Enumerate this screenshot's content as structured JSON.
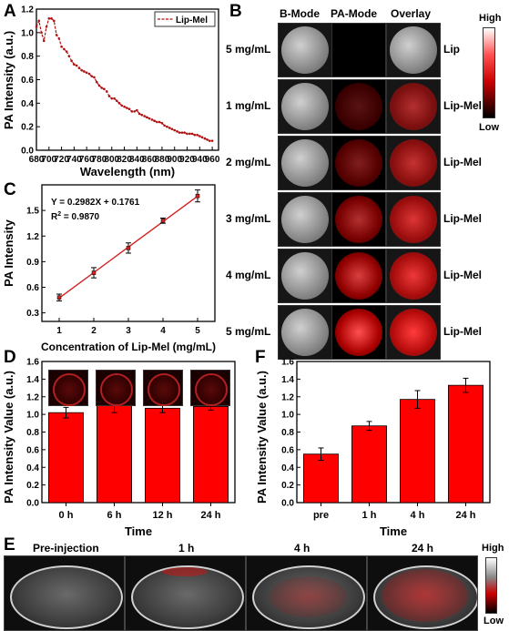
{
  "panels": {
    "a": "A",
    "b": "B",
    "c": "C",
    "d": "D",
    "e": "E",
    "f": "F"
  },
  "colors": {
    "line": "#b01010",
    "bar": "#ff0000",
    "fit": "#d42020",
    "pa_red": "#e01010"
  },
  "chart_data": [
    {
      "id": "A",
      "type": "line",
      "xlabel": "Wavelength (nm)",
      "ylabel": "PA Intensity (a.u.)",
      "xlim": [
        680,
        970
      ],
      "ylim": [
        0,
        1.2
      ],
      "xticks": [
        680,
        700,
        720,
        740,
        760,
        780,
        800,
        820,
        840,
        860,
        880,
        900,
        920,
        940,
        960
      ],
      "yticks": [
        "0.0",
        "0.2",
        "0.4",
        "0.6",
        "0.8",
        "1.0",
        "1.2"
      ],
      "legend": {
        "label": "Lip-Mel",
        "position": "top-right"
      },
      "series": [
        {
          "name": "Lip-Mel",
          "x": [
            680,
            684,
            688,
            692,
            696,
            700,
            704,
            708,
            712,
            716,
            720,
            724,
            728,
            732,
            736,
            740,
            744,
            748,
            752,
            756,
            760,
            764,
            768,
            772,
            776,
            780,
            784,
            788,
            792,
            796,
            800,
            804,
            808,
            812,
            816,
            820,
            824,
            828,
            832,
            836,
            840,
            844,
            848,
            852,
            856,
            860,
            864,
            868,
            872,
            876,
            880,
            884,
            888,
            892,
            896,
            900,
            904,
            908,
            912,
            916,
            920,
            924,
            928,
            932,
            936,
            940,
            944,
            948,
            952,
            956,
            960
          ],
          "y": [
            1.05,
            1.1,
            1.0,
            0.93,
            1.05,
            1.12,
            1.12,
            1.1,
            0.98,
            0.95,
            0.88,
            0.86,
            0.84,
            0.8,
            0.76,
            0.73,
            0.72,
            0.7,
            0.68,
            0.67,
            0.66,
            0.65,
            0.63,
            0.62,
            0.58,
            0.55,
            0.53,
            0.52,
            0.5,
            0.46,
            0.44,
            0.44,
            0.42,
            0.4,
            0.38,
            0.37,
            0.36,
            0.35,
            0.33,
            0.33,
            0.34,
            0.31,
            0.3,
            0.29,
            0.28,
            0.27,
            0.26,
            0.25,
            0.24,
            0.24,
            0.23,
            0.21,
            0.2,
            0.19,
            0.18,
            0.17,
            0.16,
            0.15,
            0.15,
            0.15,
            0.14,
            0.14,
            0.14,
            0.13,
            0.13,
            0.12,
            0.11,
            0.1,
            0.09,
            0.08,
            0.08
          ]
        }
      ]
    },
    {
      "id": "C",
      "type": "scatter",
      "xlabel": "Concentration of Lip-Mel (mg/mL)",
      "ylabel": "PA Intensity",
      "xlim": [
        0.5,
        5.5
      ],
      "ylim": [
        0.2,
        1.8
      ],
      "xticks": [
        "1",
        "2",
        "3",
        "4",
        "5"
      ],
      "yticks": [
        "0.3",
        "0.6",
        "0.9",
        "1.2",
        "1.5"
      ],
      "equation": "Y = 0.2982X + 0.1761",
      "r2_prefix": "R",
      "r2_sup": "2",
      "r2_value": " = 0.9870",
      "fit": {
        "slope": 0.2982,
        "intercept": 0.1761
      },
      "series": [
        {
          "x": [
            1,
            2,
            3,
            4,
            5
          ],
          "y": [
            0.48,
            0.77,
            1.06,
            1.38,
            1.67
          ],
          "err": [
            0.04,
            0.06,
            0.06,
            0.03,
            0.07
          ]
        }
      ]
    },
    {
      "id": "D",
      "type": "bar",
      "xlabel": "Time",
      "ylabel": "PA Intensity Value (a.u.)",
      "ylim": [
        0,
        1.6
      ],
      "yticks": [
        "0.0",
        "0.2",
        "0.4",
        "0.6",
        "0.8",
        "1.0",
        "1.2",
        "1.4",
        "1.6"
      ],
      "categories": [
        "0 h",
        "6 h",
        "12 h",
        "24 h"
      ],
      "values": [
        1.02,
        1.12,
        1.07,
        1.09
      ],
      "err": [
        0.06,
        0.1,
        0.05,
        0.04
      ]
    },
    {
      "id": "F",
      "type": "bar",
      "xlabel": "Time",
      "ylabel": "PA Intensity Value (a.u.)",
      "ylim": [
        0,
        1.6
      ],
      "yticks": [
        "0.0",
        "0.2",
        "0.4",
        "0.6",
        "0.8",
        "1.0",
        "1.2",
        "1.4",
        "1.6"
      ],
      "categories": [
        "pre",
        "1 h",
        "4 h",
        "24 h"
      ],
      "values": [
        0.55,
        0.87,
        1.17,
        1.33
      ],
      "err": [
        0.07,
        0.05,
        0.1,
        0.08
      ]
    }
  ],
  "panel_b": {
    "headers": [
      "B-Mode",
      "PA-Mode",
      "Overlay"
    ],
    "rows": [
      {
        "conc": "5 mg/mL",
        "label": "Lip",
        "pa": 0.0
      },
      {
        "conc": "1 mg/mL",
        "label": "Lip-Mel",
        "pa": 0.35
      },
      {
        "conc": "2 mg/mL",
        "label": "Lip-Mel",
        "pa": 0.5
      },
      {
        "conc": "3 mg/mL",
        "label": "Lip-Mel",
        "pa": 0.7
      },
      {
        "conc": "4 mg/mL",
        "label": "Lip-Mel",
        "pa": 0.85
      },
      {
        "conc": "5 mg/mL",
        "label": "Lip-Mel",
        "pa": 1.0
      }
    ],
    "colorbar": {
      "high": "High",
      "low": "Low"
    }
  },
  "panel_e": {
    "times": [
      "Pre-injection",
      "1 h",
      "4 h",
      "24 h"
    ],
    "colorbar": {
      "high": "High",
      "low": "Low"
    }
  }
}
